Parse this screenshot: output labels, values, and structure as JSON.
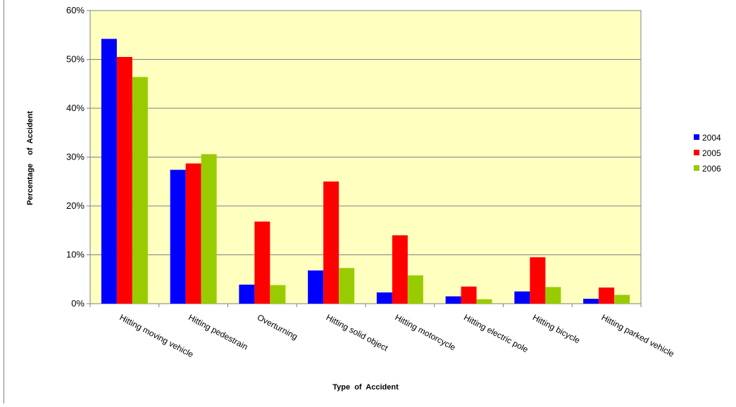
{
  "chart_data": {
    "type": "bar",
    "title": "",
    "xlabel": "Type  of  Accident",
    "ylabel": "Percentage    of  Accident",
    "ylim": [
      0,
      60
    ],
    "y_ticks": [
      "0%",
      "10%",
      "20%",
      "30%",
      "40%",
      "50%",
      "60%"
    ],
    "grid": true,
    "legend_position": "right",
    "plot_background": "#FFFFC0",
    "categories": [
      "Hitting moving vehicle",
      "Hitting pedestrain",
      "Overturning",
      "Hitting solid object",
      "Hitting motorcycle",
      "Hitting electric pole",
      "Hitting bicycle",
      "Hitting parked vehicle"
    ],
    "series": [
      {
        "name": "2004",
        "color": "#0000FF",
        "values": [
          54.2,
          27.4,
          3.9,
          6.8,
          2.3,
          1.5,
          2.5,
          1.0
        ]
      },
      {
        "name": "2005",
        "color": "#FF0000",
        "values": [
          50.5,
          28.7,
          16.8,
          25.0,
          14.0,
          3.5,
          9.5,
          3.3
        ]
      },
      {
        "name": "2006",
        "color": "#99CC00",
        "values": [
          46.4,
          30.6,
          3.8,
          7.3,
          5.8,
          0.9,
          3.4,
          1.8
        ]
      }
    ]
  }
}
